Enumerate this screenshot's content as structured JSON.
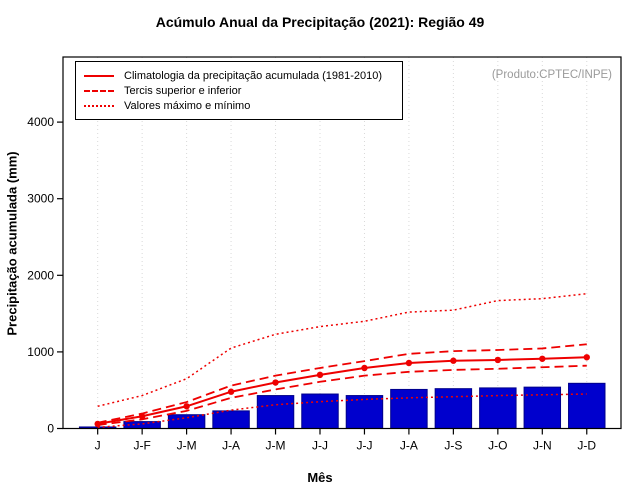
{
  "title": "Acúmulo Anual da Precipitação (2021): Região 49",
  "annotation": "(Produto:CPTEC/INPE)",
  "legend": {
    "items": [
      {
        "label": "Climatologia da precipitação acumulada (1981-2010)",
        "style": "solid"
      },
      {
        "label": "Tercis superior e inferior",
        "style": "dashed"
      },
      {
        "label": "Valores máximo e mínimo",
        "style": "dotted"
      }
    ]
  },
  "colors": {
    "bars": "#0000cd",
    "bar_border": "#00008b",
    "lines": "#ee0000",
    "grid": "#d9d9d9",
    "annotation": "#9a9a9a",
    "axis": "#000000"
  },
  "chart_data": {
    "type": "bar",
    "title": "Acúmulo Anual da Precipitação (2021): Região 49",
    "xlabel": "Mês",
    "ylabel": "Precipitação acumulada (mm)",
    "categories": [
      "J",
      "J-F",
      "J-M",
      "J-A",
      "J-M",
      "J-J",
      "J-J",
      "J-A",
      "J-S",
      "J-O",
      "J-N",
      "J-D"
    ],
    "bar_values": [
      20,
      90,
      180,
      230,
      430,
      450,
      430,
      510,
      520,
      530,
      540,
      590
    ],
    "series": [
      {
        "name": "Climatologia da precipitação acumulada (1981-2010)",
        "style": "solid",
        "marker": true,
        "values": [
          60,
          160,
          290,
          480,
          600,
          700,
          790,
          855,
          885,
          895,
          910,
          930
        ]
      },
      {
        "name": "Tercil superior",
        "style": "dashed",
        "marker": false,
        "values": [
          75,
          195,
          345,
          560,
          690,
          790,
          880,
          975,
          1010,
          1025,
          1045,
          1100
        ]
      },
      {
        "name": "Tercil inferior",
        "style": "dashed",
        "marker": false,
        "values": [
          45,
          120,
          230,
          400,
          510,
          610,
          690,
          740,
          765,
          780,
          800,
          820
        ]
      },
      {
        "name": "Valores máximos",
        "style": "dotted",
        "marker": false,
        "values": [
          290,
          430,
          650,
          1050,
          1230,
          1330,
          1400,
          1520,
          1545,
          1670,
          1695,
          1760
        ]
      },
      {
        "name": "Valores mínimos",
        "style": "dotted",
        "marker": false,
        "values": [
          15,
          60,
          140,
          240,
          310,
          350,
          380,
          400,
          415,
          430,
          440,
          450
        ]
      }
    ],
    "yticks": [
      0,
      1000,
      2000,
      3000,
      4000
    ],
    "ylim": [
      0,
      4850
    ],
    "grid": "vertical-dotted",
    "legend_position": "top-left"
  }
}
